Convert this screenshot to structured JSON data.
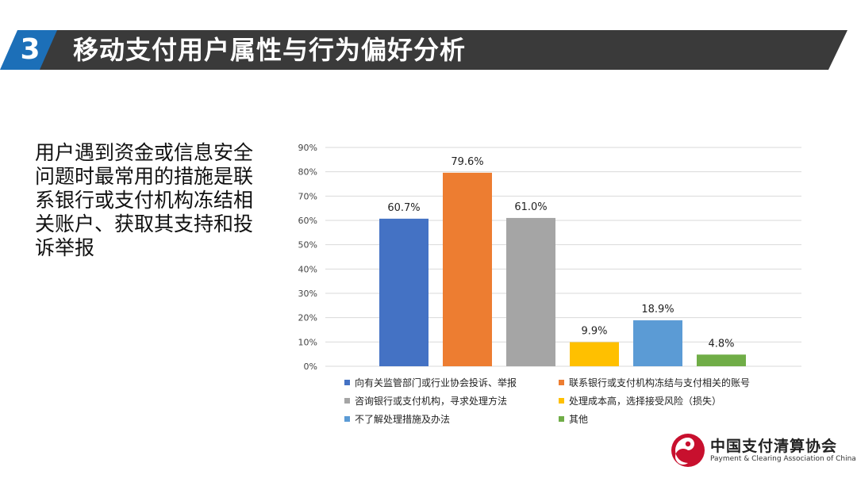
{
  "header": {
    "section_number": "3",
    "title": "移动支付用户属性与行为偏好分析"
  },
  "lead_text": "用户遇到资金或信息安全问题时最常用的措施是联系银行或支付机构冻结相关账户、获取其支持和投诉举报",
  "chart_data": {
    "type": "bar",
    "title": "",
    "xlabel": "",
    "ylabel": "",
    "ylim": [
      0,
      90
    ],
    "y_ticks": [
      "90%",
      "80%",
      "70%",
      "60%",
      "50%",
      "40%",
      "30%",
      "20%",
      "10%",
      "0%"
    ],
    "grid": true,
    "legend_position": "bottom",
    "series": [
      {
        "name": "向有关监管部门或行业协会投诉、举报",
        "value": 60.7,
        "label": "60.7%",
        "color": "#4472C4"
      },
      {
        "name": "联系银行或支付机构冻结与支付相关的账号",
        "value": 79.6,
        "label": "79.6%",
        "color": "#ED7D31"
      },
      {
        "name": "咨询银行或支付机构，寻求处理方法",
        "value": 61.0,
        "label": "61.0%",
        "color": "#A5A5A5"
      },
      {
        "name": "处理成本高，选择接受风险（损失）",
        "value": 9.9,
        "label": "9.9%",
        "color": "#FFC000"
      },
      {
        "name": "不了解处理措施及办法",
        "value": 18.9,
        "label": "18.9%",
        "color": "#5B9BD5"
      },
      {
        "name": "其他",
        "value": 4.8,
        "label": "4.8%",
        "color": "#70AD47"
      }
    ]
  },
  "brand": {
    "name_cn": "中国支付清算协会",
    "name_en": "Payment & Clearing Association of China",
    "logo_color": "#C8102E"
  },
  "colors": {
    "header_bar": "#3a3a3a",
    "accent": "#1C6FB8"
  }
}
